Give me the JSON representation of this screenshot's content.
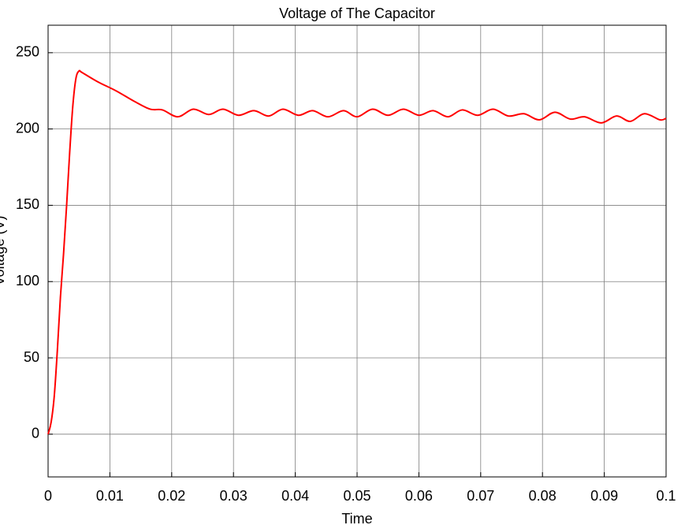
{
  "chart_data": {
    "type": "line",
    "title": "Voltage of The Capacitor",
    "xlabel": "Time",
    "ylabel": "Voltage (V)",
    "xlim": [
      0,
      0.1
    ],
    "ylim": [
      -28,
      268
    ],
    "xticks": [
      0,
      0.01,
      0.02,
      0.03,
      0.04,
      0.05,
      0.06,
      0.07,
      0.08,
      0.09,
      0.1
    ],
    "yticks": [
      0,
      50,
      100,
      150,
      200,
      250
    ],
    "grid": true,
    "series": [
      {
        "color": "#ff0000",
        "x": [
          0,
          0.0005,
          0.001,
          0.0015,
          0.002,
          0.0025,
          0.003,
          0.0035,
          0.004,
          0.0045,
          0.005,
          0.0055,
          0.008,
          0.011,
          0.014,
          0.0165,
          0.0185,
          0.021,
          0.0235,
          0.026,
          0.0283,
          0.0308,
          0.0333,
          0.0357,
          0.038,
          0.0405,
          0.0428,
          0.0453,
          0.0478,
          0.05,
          0.0525,
          0.055,
          0.0575,
          0.06,
          0.0623,
          0.0647,
          0.067,
          0.0695,
          0.072,
          0.0745,
          0.077,
          0.0795,
          0.082,
          0.0845,
          0.0868,
          0.0895,
          0.092,
          0.0942,
          0.0965,
          0.099,
          0.1
        ],
        "values": [
          0,
          8,
          25,
          55,
          90,
          118,
          150,
          185,
          215,
          233,
          238,
          237,
          231,
          225,
          218,
          213,
          212.5,
          208,
          213,
          209.5,
          213,
          209,
          212,
          208.5,
          213,
          209,
          212,
          208,
          212,
          208,
          213,
          209,
          213,
          209,
          212,
          208,
          212.5,
          209,
          213,
          208.5,
          210,
          206,
          211,
          206.5,
          208,
          204,
          208.5,
          205,
          210,
          206,
          207
        ]
      }
    ]
  }
}
